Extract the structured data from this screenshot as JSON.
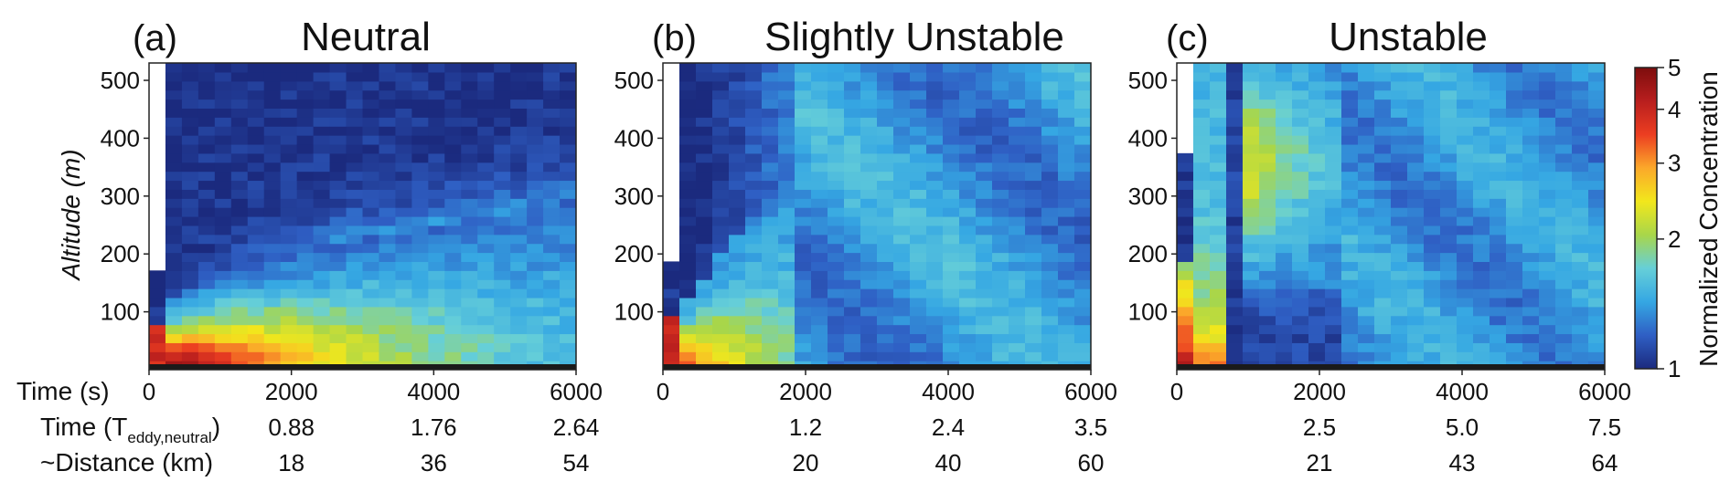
{
  "chart_data": {
    "type": "heatmap",
    "figure": {
      "row_labels": {
        "time_s": "Time (s)",
        "time_teddy_prefix": "Time (T",
        "time_teddy_sub": "eddy,neutral",
        "time_teddy_suffix": ")",
        "distance": "~Distance (km)"
      },
      "ylabel": "Altitude (m)",
      "colorbar": {
        "label": "Normalized Concentration",
        "scale": "log",
        "range": [
          1,
          5
        ],
        "tick_labels": [
          "1",
          "2",
          "3",
          "4",
          "5"
        ],
        "colormap": [
          "#1b2a7e",
          "#2f5fc4",
          "#35a7e3",
          "#66cfd8",
          "#a8d64a",
          "#f2e71c",
          "#fba82a",
          "#ec3e21",
          "#b81e1e",
          "#7d0d0d"
        ]
      }
    },
    "panels": [
      {
        "letter": "(a)",
        "title": "Neutral",
        "stability": "neutral",
        "x_ticks": [
          "0",
          "2000",
          "4000",
          "6000"
        ],
        "y_ticks": [
          "100",
          "200",
          "300",
          "400",
          "500"
        ],
        "xlim": [
          0,
          6000
        ],
        "ylim": [
          0,
          530
        ],
        "time_eddy_values": [
          2000,
          4000,
          6000
        ],
        "time_eddy_labels": [
          "0.88",
          "1.76",
          "2.64"
        ],
        "distance_labels": [
          "18",
          "36",
          "54"
        ]
      },
      {
        "letter": "(b)",
        "title": "Slightly Unstable",
        "stability": "slightly_unstable",
        "x_ticks": [
          "0",
          "2000",
          "4000",
          "6000"
        ],
        "y_ticks": [
          "100",
          "200",
          "300",
          "400",
          "500"
        ],
        "xlim": [
          0,
          6000
        ],
        "ylim": [
          0,
          530
        ],
        "time_eddy_values": [
          2000,
          4000,
          6000
        ],
        "time_eddy_labels": [
          "1.2",
          "2.4",
          "3.5"
        ],
        "distance_labels": [
          "20",
          "40",
          "60"
        ]
      },
      {
        "letter": "(c)",
        "title": "Unstable",
        "stability": "unstable",
        "x_ticks": [
          "0",
          "2000",
          "4000",
          "6000"
        ],
        "y_ticks": [
          "100",
          "200",
          "300",
          "400",
          "500"
        ],
        "xlim": [
          0,
          6000
        ],
        "ylim": [
          0,
          530
        ],
        "time_eddy_values": [
          2000,
          4000,
          6000
        ],
        "time_eddy_labels": [
          "2.5",
          "5.0",
          "7.5"
        ],
        "distance_labels": [
          "21",
          "43",
          "64"
        ]
      }
    ]
  }
}
